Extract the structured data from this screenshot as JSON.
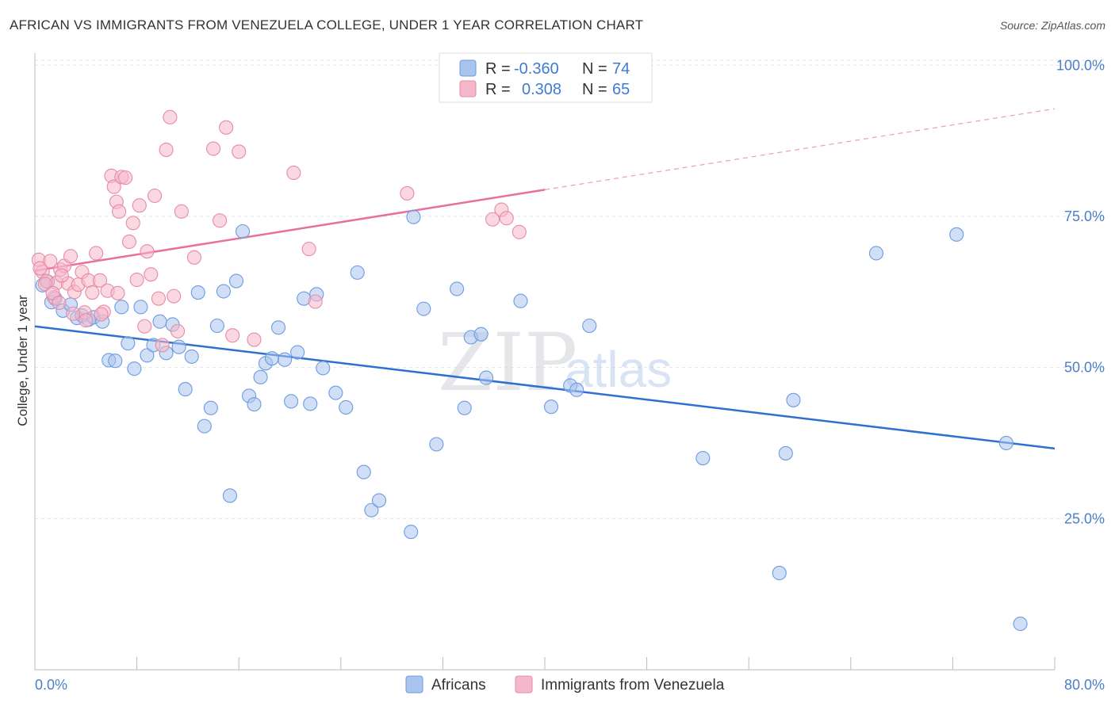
{
  "header": {
    "title": "AFRICAN VS IMMIGRANTS FROM VENEZUELA COLLEGE, UNDER 1 YEAR CORRELATION CHART",
    "source": "Source: ZipAtlas.com"
  },
  "watermark": {
    "zip": "ZIP",
    "atlas": "atlas"
  },
  "legend": {
    "rows": [
      {
        "r_label": "R =",
        "r_value": "-0.360",
        "n_label": "N =",
        "n_value": "74",
        "color": "#a9c4ee"
      },
      {
        "r_label": "R =",
        "r_value": "0.308",
        "n_label": "N =",
        "n_value": "65",
        "color": "#f5b8cb"
      }
    ]
  },
  "chart_data": {
    "type": "scatter",
    "title": "AFRICAN VS IMMIGRANTS FROM VENEZUELA COLLEGE, UNDER 1 YEAR CORRELATION CHART",
    "xlabel": "",
    "ylabel": "College, Under 1 year",
    "xlim": [
      0,
      80
    ],
    "ylim": [
      0,
      102
    ],
    "x_tick_labels": [
      "0.0%",
      "80.0%"
    ],
    "y_ticks": [
      25,
      50,
      75,
      100
    ],
    "y_tick_labels": [
      "25.0%",
      "50.0%",
      "75.0%",
      "100.0%"
    ],
    "grid": true,
    "legend_position": "top-center",
    "series": [
      {
        "name": "Africans",
        "color": "#6d9be0",
        "fill": "#a9c4ee",
        "trend": {
          "x": [
            0,
            80
          ],
          "y": [
            56.8,
            36.6
          ],
          "dashed_from": null,
          "color": "#2f6fd0"
        },
        "points": [
          [
            0.6,
            63.6
          ],
          [
            1.0,
            64.2
          ],
          [
            1.3,
            60.8
          ],
          [
            1.6,
            61.4
          ],
          [
            2.2,
            59.4
          ],
          [
            2.8,
            60.4
          ],
          [
            3.3,
            58.2
          ],
          [
            3.7,
            58.6
          ],
          [
            4.2,
            57.9
          ],
          [
            4.6,
            58.3
          ],
          [
            5.3,
            57.6
          ],
          [
            5.8,
            51.2
          ],
          [
            6.3,
            51.1
          ],
          [
            6.8,
            60.0
          ],
          [
            7.3,
            54.0
          ],
          [
            7.8,
            49.8
          ],
          [
            8.3,
            60.0
          ],
          [
            8.8,
            52.0
          ],
          [
            9.3,
            53.7
          ],
          [
            9.8,
            57.6
          ],
          [
            10.3,
            52.4
          ],
          [
            10.8,
            57.1
          ],
          [
            11.3,
            53.4
          ],
          [
            11.8,
            46.4
          ],
          [
            12.3,
            51.8
          ],
          [
            12.8,
            62.4
          ],
          [
            13.3,
            40.3
          ],
          [
            13.8,
            43.3
          ],
          [
            14.3,
            56.9
          ],
          [
            14.8,
            62.6
          ],
          [
            15.3,
            28.8
          ],
          [
            15.8,
            64.3
          ],
          [
            16.3,
            72.5
          ],
          [
            16.8,
            45.3
          ],
          [
            17.2,
            43.9
          ],
          [
            17.7,
            48.4
          ],
          [
            18.1,
            50.7
          ],
          [
            18.6,
            51.5
          ],
          [
            19.1,
            56.6
          ],
          [
            19.6,
            51.3
          ],
          [
            20.1,
            44.4
          ],
          [
            20.6,
            52.5
          ],
          [
            21.1,
            61.4
          ],
          [
            21.6,
            44.0
          ],
          [
            22.1,
            62.1
          ],
          [
            22.6,
            49.9
          ],
          [
            23.6,
            45.8
          ],
          [
            24.4,
            43.4
          ],
          [
            25.3,
            65.7
          ],
          [
            25.8,
            32.7
          ],
          [
            26.4,
            26.4
          ],
          [
            27.0,
            28.0
          ],
          [
            29.5,
            22.8
          ],
          [
            29.7,
            74.9
          ],
          [
            30.5,
            59.7
          ],
          [
            31.5,
            37.3
          ],
          [
            33.1,
            63.0
          ],
          [
            33.7,
            43.3
          ],
          [
            34.2,
            55.0
          ],
          [
            35.0,
            55.5
          ],
          [
            35.4,
            48.3
          ],
          [
            38.1,
            61.0
          ],
          [
            40.5,
            43.5
          ],
          [
            42.0,
            47.0
          ],
          [
            42.5,
            46.3
          ],
          [
            43.5,
            56.9
          ],
          [
            52.4,
            35.0
          ],
          [
            58.4,
            16.0
          ],
          [
            58.9,
            35.8
          ],
          [
            59.5,
            44.6
          ],
          [
            66.0,
            68.9
          ],
          [
            72.3,
            72.0
          ],
          [
            76.2,
            37.5
          ],
          [
            77.3,
            7.6
          ]
        ]
      },
      {
        "name": "Immigrants from Venezuela",
        "color": "#e88aa7",
        "fill": "#f5b8cb",
        "trend": {
          "x": [
            0,
            80
          ],
          "y": [
            66.0,
            92.8
          ],
          "dashed_from": 40,
          "color": "#e8709a"
        },
        "points": [
          [
            0.3,
            67.8
          ],
          [
            0.6,
            65.8
          ],
          [
            0.9,
            64.3
          ],
          [
            1.2,
            67.6
          ],
          [
            1.5,
            61.6
          ],
          [
            1.7,
            64.0
          ],
          [
            2.0,
            66.2
          ],
          [
            2.3,
            66.8
          ],
          [
            2.6,
            63.9
          ],
          [
            2.8,
            68.4
          ],
          [
            3.1,
            62.5
          ],
          [
            3.4,
            63.7
          ],
          [
            3.7,
            65.8
          ],
          [
            3.9,
            59.1
          ],
          [
            4.2,
            64.4
          ],
          [
            4.5,
            62.4
          ],
          [
            4.8,
            68.9
          ],
          [
            5.1,
            64.4
          ],
          [
            5.4,
            59.2
          ],
          [
            5.7,
            62.7
          ],
          [
            6.0,
            81.7
          ],
          [
            6.2,
            79.9
          ],
          [
            6.4,
            77.4
          ],
          [
            6.6,
            75.8
          ],
          [
            6.8,
            81.5
          ],
          [
            7.1,
            81.4
          ],
          [
            7.4,
            70.8
          ],
          [
            7.7,
            73.9
          ],
          [
            8.0,
            64.5
          ],
          [
            8.2,
            76.8
          ],
          [
            8.6,
            56.8
          ],
          [
            8.8,
            69.2
          ],
          [
            9.1,
            65.4
          ],
          [
            9.4,
            78.4
          ],
          [
            9.7,
            61.4
          ],
          [
            10.0,
            53.7
          ],
          [
            10.3,
            86.0
          ],
          [
            10.6,
            91.4
          ],
          [
            10.9,
            61.8
          ],
          [
            11.2,
            56.0
          ],
          [
            11.5,
            75.8
          ],
          [
            12.5,
            68.2
          ],
          [
            14.0,
            86.2
          ],
          [
            14.5,
            74.3
          ],
          [
            15.0,
            89.7
          ],
          [
            15.5,
            55.3
          ],
          [
            16.0,
            85.7
          ],
          [
            17.2,
            54.6
          ],
          [
            20.3,
            82.2
          ],
          [
            21.5,
            69.6
          ],
          [
            22.0,
            60.9
          ],
          [
            29.2,
            78.8
          ],
          [
            35.9,
            74.5
          ],
          [
            36.6,
            76.1
          ],
          [
            37.0,
            74.7
          ],
          [
            38.0,
            72.4
          ],
          [
            0.4,
            66.4
          ],
          [
            0.8,
            63.8
          ],
          [
            1.4,
            62.3
          ],
          [
            3.0,
            58.9
          ],
          [
            4.0,
            57.8
          ],
          [
            5.2,
            58.8
          ],
          [
            2.1,
            65.2
          ],
          [
            1.9,
            60.7
          ],
          [
            6.5,
            62.3
          ]
        ]
      }
    ]
  },
  "bottom_legend": [
    {
      "label": "Africans",
      "color": "#a9c4ee",
      "border": "#6d9be0"
    },
    {
      "label": "Immigrants from Venezuela",
      "color": "#f5b8cb",
      "border": "#e88aa7"
    }
  ]
}
